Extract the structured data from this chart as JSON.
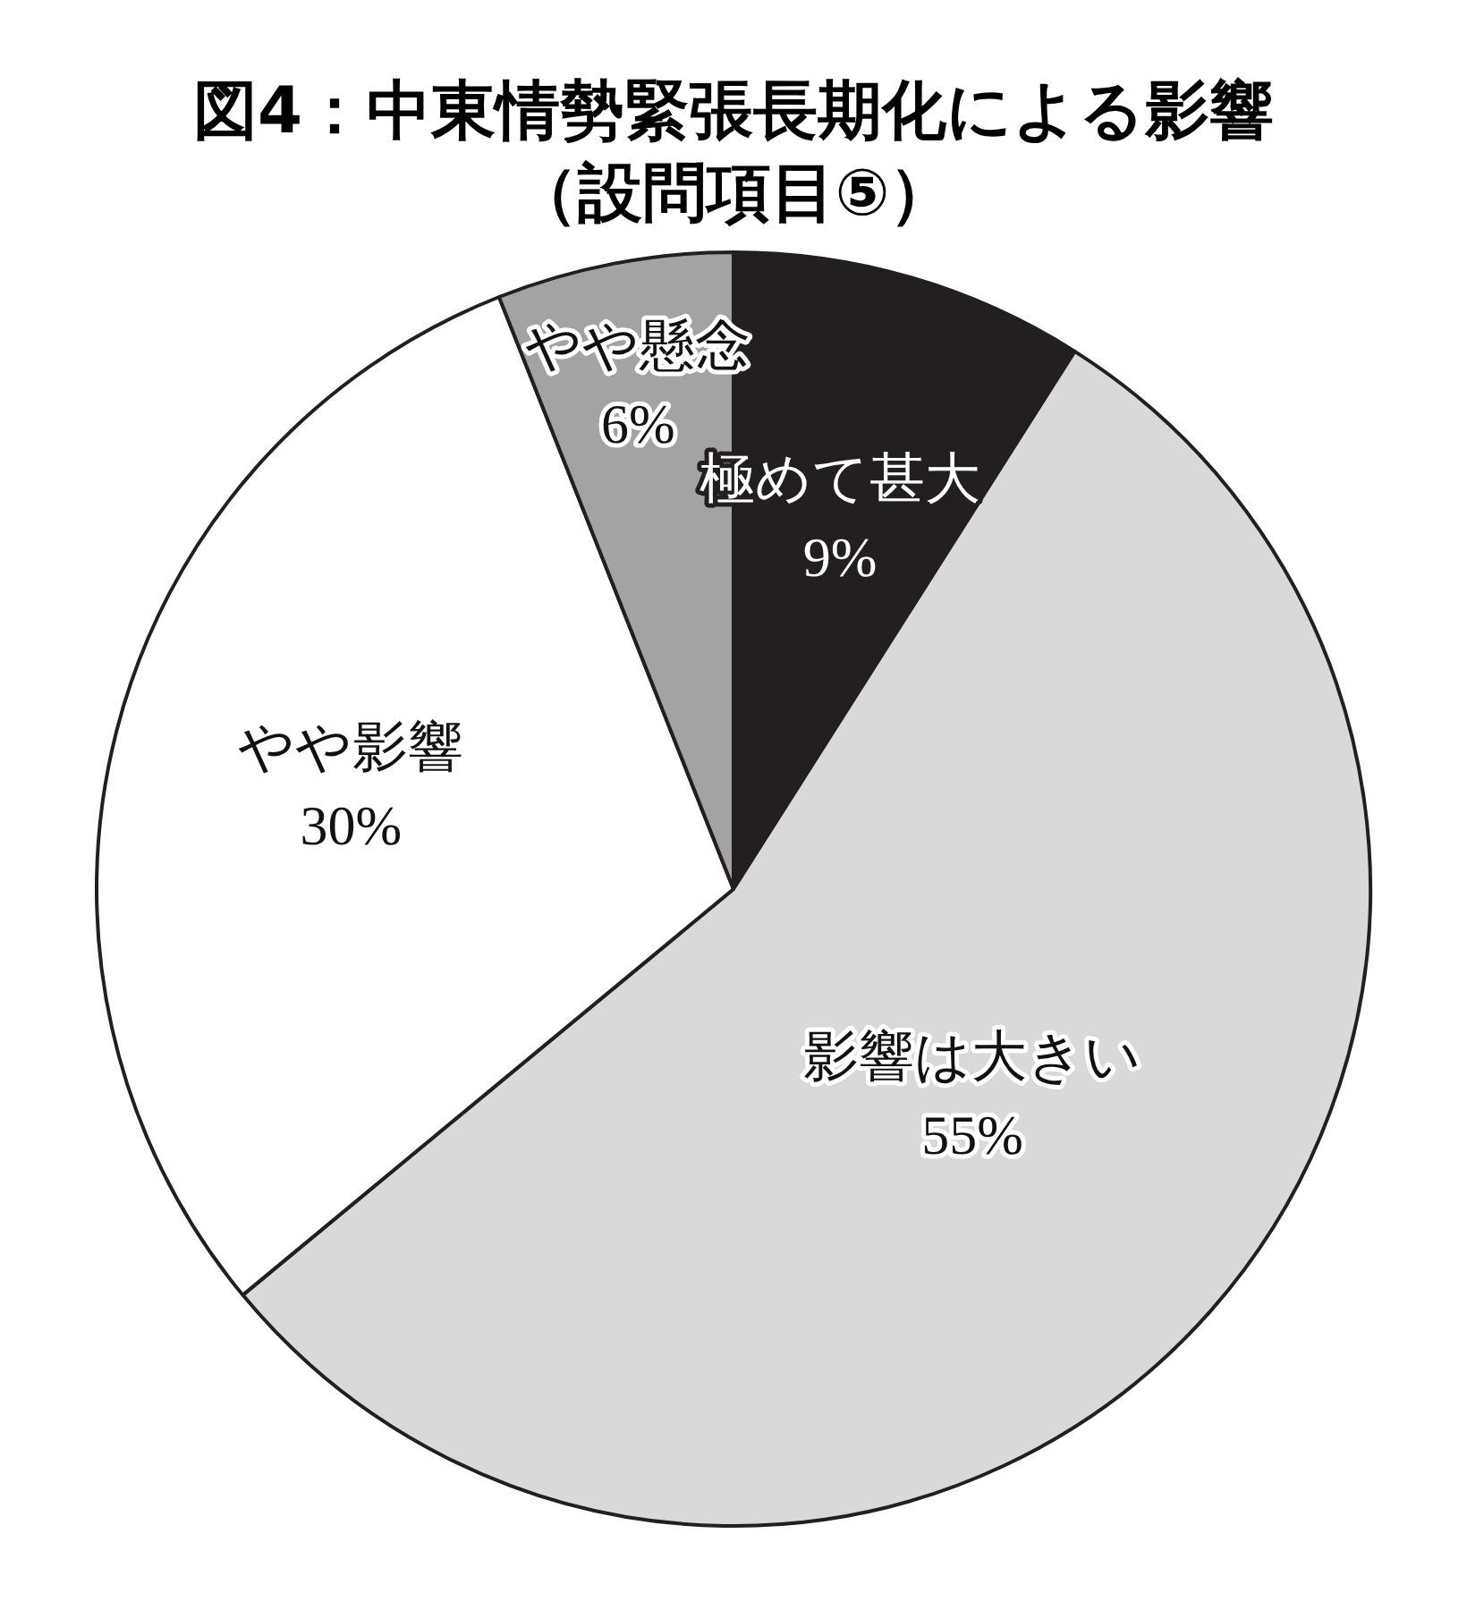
{
  "chart_data": {
    "type": "pie",
    "title": "図4：中東情勢緊張長期化による影響",
    "subtitle": "（設問項目⑤）",
    "categories": [
      "極めて甚大",
      "影響は大きい",
      "やや影響",
      "やや懸念"
    ],
    "values": [
      9,
      55,
      30,
      6
    ],
    "value_labels": [
      "9%",
      "55%",
      "30%",
      "6%"
    ],
    "colors": [
      "#231f20",
      "#d9d9d9",
      "#ffffff",
      "#a3a3a3"
    ],
    "legend": false
  }
}
